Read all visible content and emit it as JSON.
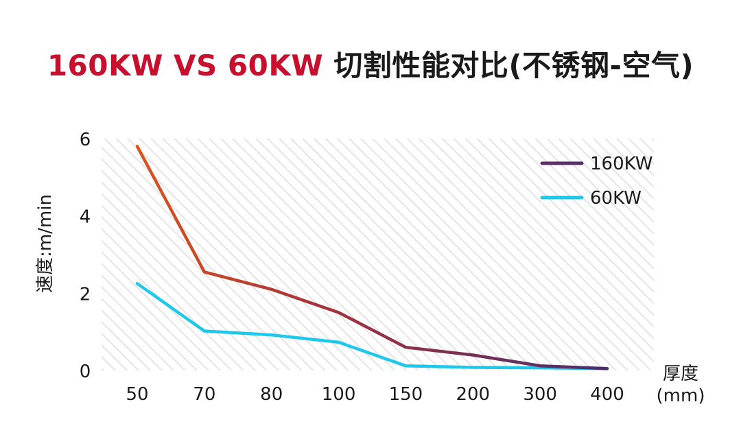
{
  "title": {
    "highlight": "160KW VS 60KW",
    "rest": " 切割性能对比(不锈钢-空气)"
  },
  "colors": {
    "title_red": "#c8102e",
    "series_160_start": "#d9541e",
    "series_160_end": "#4a2d6e",
    "series_60": "#1ec8ea"
  },
  "chart_data": {
    "type": "line",
    "title": "160KW VS 60KW 切割性能对比(不锈钢-空气)",
    "categories": [
      "50",
      "70",
      "80",
      "100",
      "150",
      "200",
      "300",
      "400"
    ],
    "series": [
      {
        "name": "160KW",
        "values": [
          5.8,
          2.55,
          2.1,
          1.5,
          0.6,
          0.4,
          0.12,
          0.05
        ]
      },
      {
        "name": "60KW",
        "values": [
          2.25,
          1.02,
          0.92,
          0.73,
          0.12,
          0.08,
          0.07,
          0.05
        ]
      }
    ],
    "ylabel": "速度:m/min",
    "xlabel": "厚度\n(mm)",
    "xlabel_line1": "厚度",
    "xlabel_line2": "(mm)",
    "ylim": [
      0,
      6
    ],
    "yticks": [
      "0",
      "2",
      "4",
      "6"
    ],
    "grid": false,
    "background": "diagonal-hatch",
    "legend_position": "top-right"
  }
}
